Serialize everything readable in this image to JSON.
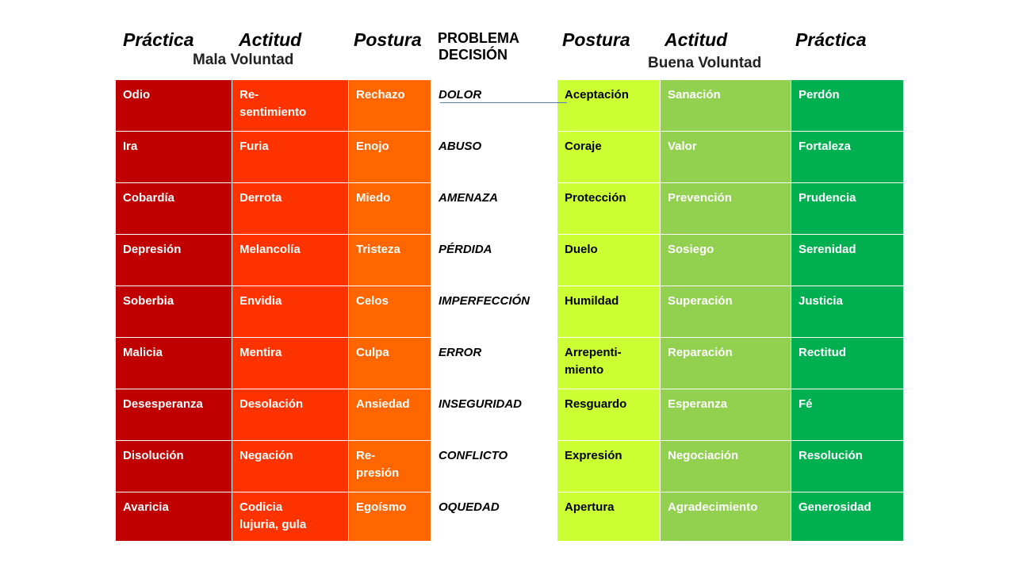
{
  "headers": {
    "left": {
      "practica": "Práctica",
      "actitud": "Actitud",
      "postura": "Postura",
      "voluntad": "Mala Voluntad"
    },
    "center": {
      "line1": "PROBLEMA",
      "line2": "DECISIÓN"
    },
    "right": {
      "postura": "Postura",
      "actitud": "Actitud",
      "practica": "Práctica",
      "voluntad": "Buena Voluntad"
    }
  },
  "rows": [
    {
      "practica_mala": "Odio",
      "actitud_mala": "Re-\nsentimiento",
      "postura_mala": "Rechazo",
      "problema": "DOLOR",
      "postura_buena": "Aceptación",
      "actitud_buena": "Sanación",
      "practica_buena": "Perdón"
    },
    {
      "practica_mala": "Ira",
      "actitud_mala": "Furia",
      "postura_mala": "Enojo",
      "problema": "ABUSO",
      "postura_buena": "Coraje",
      "actitud_buena": "Valor",
      "practica_buena": "Fortaleza"
    },
    {
      "practica_mala": "Cobardía",
      "actitud_mala": "Derrota",
      "postura_mala": "Miedo",
      "problema": "AMENAZA",
      "postura_buena": "Protección",
      "actitud_buena": "Prevención",
      "practica_buena": "Prudencia"
    },
    {
      "practica_mala": "Depresión",
      "actitud_mala": "Melancolía",
      "postura_mala": "Tristeza",
      "problema": "PÉRDIDA",
      "postura_buena": "Duelo",
      "actitud_buena": "Sosiego",
      "practica_buena": "Serenidad"
    },
    {
      "practica_mala": "Soberbia",
      "actitud_mala": "Envidia",
      "postura_mala": "Celos",
      "problema": "IMPERFECCIÓN",
      "postura_buena": "Humildad",
      "actitud_buena": "Superación",
      "practica_buena": "Justicia"
    },
    {
      "practica_mala": "Malicia",
      "actitud_mala": "Mentira",
      "postura_mala": "Culpa",
      "problema": "ERROR",
      "postura_buena": "Arrepenti-\nmiento",
      "actitud_buena": "Reparación",
      "practica_buena": "Rectitud"
    },
    {
      "practica_mala": "Desesperanza",
      "actitud_mala": "Desolación",
      "postura_mala": "Ansiedad",
      "problema": "INSEGURIDAD",
      "postura_buena": "Resguardo",
      "actitud_buena": "Esperanza",
      "practica_buena": "Fé"
    },
    {
      "practica_mala": "Disolución",
      "actitud_mala": "Negación",
      "postura_mala": "Re-\npresión",
      "problema": "CONFLICTO",
      "postura_buena": "Expresión",
      "actitud_buena": "Negociación",
      "practica_buena": "Resolución"
    },
    {
      "practica_mala": "Avaricia",
      "actitud_mala": "Codicia\nlujuria, gula",
      "postura_mala": "Egoísmo",
      "problema": "OQUEDAD",
      "postura_buena": "Apertura",
      "actitud_buena": "Agradecimiento",
      "practica_buena": "Generosidad"
    }
  ],
  "colors": {
    "practica_mala": "#c00000",
    "actitud_mala": "#ff3300",
    "postura_mala": "#ff6600",
    "postura_buena": "#ccff33",
    "actitud_buena": "#92d050",
    "practica_buena": "#00b050",
    "connector": "#4f81bd"
  }
}
